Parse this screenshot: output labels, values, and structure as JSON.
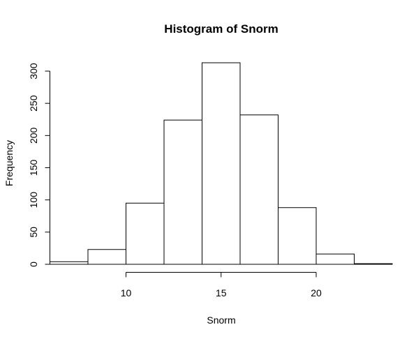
{
  "chart_data": {
    "type": "bar",
    "title": "Histogram of Snorm",
    "xlabel": "Snorm",
    "ylabel": "Frequency",
    "bin_edges": [
      6,
      8,
      10,
      12,
      14,
      16,
      18,
      20,
      22,
      24
    ],
    "values": [
      4,
      23,
      95,
      224,
      313,
      232,
      88,
      16,
      1
    ],
    "xlim": [
      6,
      24
    ],
    "ylim": [
      0,
      313
    ],
    "x_ticks": [
      10,
      15,
      20
    ],
    "y_ticks": [
      0,
      50,
      100,
      150,
      200,
      250,
      300
    ],
    "grid": false,
    "bar_fill": "#ffffff",
    "bar_stroke": "#000000"
  }
}
